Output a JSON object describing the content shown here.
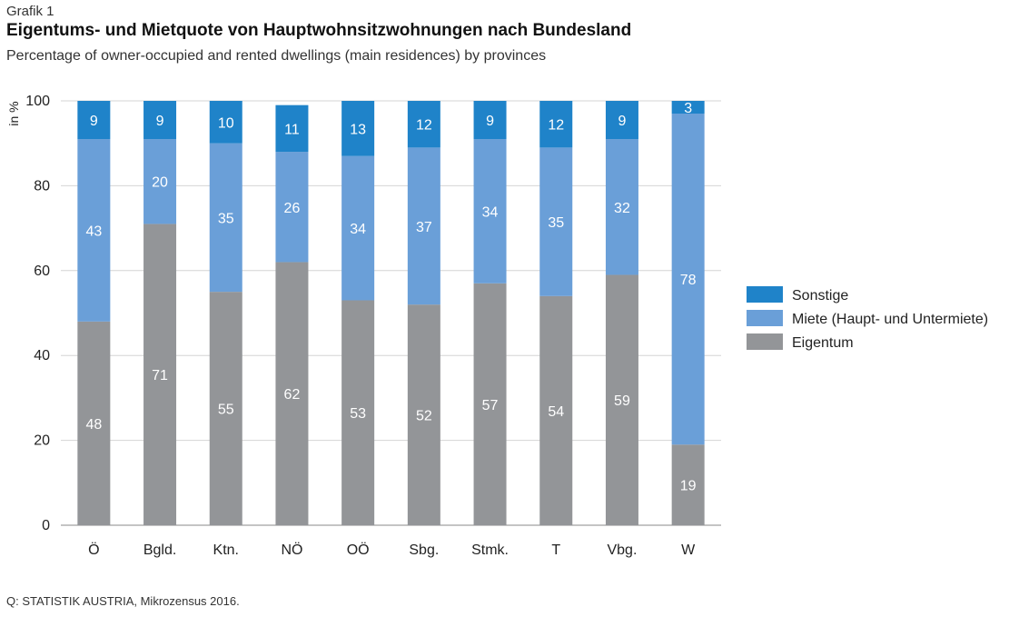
{
  "header": {
    "kicker": "Grafik 1",
    "title": "Eigentums- und Mietquote von Hauptwohnsitzwohnungen nach Bundesland",
    "subtitle": "Percentage of owner-occupied and rented dwellings (main residences) by provinces"
  },
  "source": "Q: STATISTIK AUSTRIA, Mikrozensus 2016.",
  "chart_data": {
    "type": "bar",
    "stacked": true,
    "categories": [
      "Ö",
      "Bgld.",
      "Ktn.",
      "NÖ",
      "OÖ",
      "Sbg.",
      "Stmk.",
      "T",
      "Vbg.",
      "W"
    ],
    "series": [
      {
        "name": "Eigentum",
        "color": "#939598",
        "values": [
          48,
          71,
          55,
          62,
          53,
          52,
          57,
          54,
          59,
          19
        ]
      },
      {
        "name": "Miete (Haupt- und Untermiete)",
        "color": "#6a9fd8",
        "values": [
          43,
          20,
          35,
          26,
          34,
          37,
          34,
          35,
          32,
          78
        ]
      },
      {
        "name": "Sonstige",
        "color": "#1f83c9",
        "values": [
          9,
          9,
          10,
          11,
          13,
          12,
          9,
          12,
          9,
          3
        ]
      }
    ],
    "ylabel": "in %",
    "ylim": [
      0,
      100
    ],
    "yticks": [
      0,
      20,
      40,
      60,
      80,
      100
    ],
    "grid": true,
    "legend_position": "right",
    "legend_order": [
      "Sonstige",
      "Miete (Haupt- und Untermiete)",
      "Eigentum"
    ]
  }
}
